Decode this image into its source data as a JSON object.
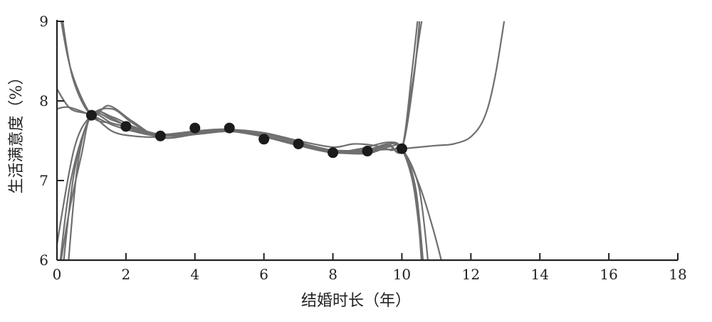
{
  "chart_data": {
    "type": "line",
    "xlabel": "结婚时长（年）",
    "ylabel": "生活满意度（%）",
    "xlim": [
      0,
      18
    ],
    "ylim": [
      6,
      9
    ],
    "x_ticks": [
      0,
      2,
      4,
      6,
      8,
      10,
      12,
      14,
      16,
      18
    ],
    "y_ticks": [
      6,
      7,
      8,
      9
    ],
    "grid": false,
    "legend": "none",
    "points": {
      "x": [
        1,
        2,
        3,
        4,
        5,
        6,
        7,
        8,
        9,
        10
      ],
      "y": [
        7.82,
        7.68,
        7.56,
        7.66,
        7.66,
        7.52,
        7.46,
        7.35,
        7.37,
        7.4
      ]
    },
    "series": [
      {
        "x": [
          0.05,
          0.4,
          1.0,
          1.6,
          2.2,
          3.0,
          4.0,
          5.0,
          6.0,
          7.0,
          8.0,
          9.0,
          9.6,
          10.0,
          10.4,
          10.6
        ],
        "y": [
          9.2,
          8.4,
          7.82,
          7.72,
          7.66,
          7.58,
          7.62,
          7.64,
          7.55,
          7.46,
          7.37,
          7.39,
          7.46,
          7.4,
          6.8,
          5.8
        ]
      },
      {
        "x": [
          0.1,
          0.45,
          1.0,
          1.5,
          2.2,
          3.0,
          4.0,
          5.0,
          6.0,
          7.0,
          8.0,
          8.8,
          9.6,
          10.0,
          10.35,
          10.65
        ],
        "y": [
          9.2,
          8.3,
          7.82,
          7.94,
          7.74,
          7.54,
          7.58,
          7.64,
          7.56,
          7.45,
          7.36,
          7.4,
          7.48,
          7.4,
          6.9,
          5.8
        ]
      },
      {
        "x": [
          0.0,
          0.4,
          1.0,
          1.6,
          2.2,
          3.0,
          4.0,
          5.0,
          6.0,
          7.0,
          8.0,
          8.6,
          9.2,
          9.7,
          10.0,
          10.4,
          10.65
        ],
        "y": [
          8.15,
          7.9,
          7.82,
          7.62,
          7.56,
          7.55,
          7.62,
          7.64,
          7.6,
          7.5,
          7.42,
          7.46,
          7.44,
          7.38,
          7.4,
          6.9,
          5.8
        ]
      },
      {
        "x": [
          0.0,
          0.5,
          1.0,
          1.6,
          2.2,
          3.0,
          4.0,
          5.0,
          6.0,
          7.0,
          8.0,
          9.0,
          9.6,
          10.0,
          10.5,
          10.8
        ],
        "y": [
          6.2,
          7.4,
          7.82,
          7.9,
          7.72,
          7.54,
          7.58,
          7.62,
          7.56,
          7.46,
          7.36,
          7.34,
          7.42,
          7.4,
          6.9,
          5.8
        ]
      },
      {
        "x": [
          0.05,
          0.35,
          0.7,
          1.0,
          1.6,
          2.2,
          3.0,
          4.0,
          5.0,
          6.0,
          7.0,
          8.0,
          9.0,
          9.6,
          10.0,
          10.5,
          10.9,
          11.2
        ],
        "y": [
          5.8,
          6.6,
          7.3,
          7.82,
          7.72,
          7.66,
          7.56,
          7.62,
          7.64,
          7.55,
          7.44,
          7.35,
          7.36,
          7.46,
          7.4,
          6.95,
          6.4,
          5.9
        ]
      },
      {
        "x": [
          0.05,
          0.4,
          1.0,
          1.6,
          2.2,
          3.0,
          4.0,
          5.0,
          6.0,
          7.0,
          8.0,
          9.0,
          9.6,
          10.0,
          10.3,
          10.5,
          10.65
        ],
        "y": [
          5.8,
          7.0,
          7.82,
          7.78,
          7.64,
          7.56,
          7.58,
          7.62,
          7.58,
          7.48,
          7.38,
          7.36,
          7.44,
          7.4,
          8.2,
          8.8,
          9.2
        ]
      },
      {
        "x": [
          0.15,
          0.5,
          1.0,
          1.6,
          2.2,
          3.0,
          4.0,
          5.0,
          6.0,
          7.0,
          8.0,
          9.0,
          9.6,
          10.0,
          10.35,
          10.55
        ],
        "y": [
          5.8,
          7.1,
          7.82,
          7.8,
          7.68,
          7.58,
          7.6,
          7.62,
          7.56,
          7.46,
          7.36,
          7.37,
          7.44,
          7.4,
          8.3,
          9.2
        ]
      },
      {
        "x": [
          0.3,
          0.6,
          1.0,
          1.6,
          2.2,
          3.0,
          4.0,
          5.0,
          6.0,
          7.0,
          8.0,
          9.0,
          9.6,
          10.0,
          10.3,
          10.5
        ],
        "y": [
          5.8,
          7.2,
          7.82,
          7.76,
          7.66,
          7.56,
          7.6,
          7.63,
          7.55,
          7.46,
          7.37,
          7.38,
          7.46,
          7.4,
          8.4,
          9.2
        ]
      },
      {
        "x": [
          0.0,
          0.35,
          1.0,
          1.6,
          2.2,
          3.0,
          4.0,
          5.0,
          6.0,
          7.0,
          8.0,
          9.0,
          10.0,
          10.5,
          11.0,
          11.5,
          12.0,
          12.4,
          12.7,
          13.0
        ],
        "y": [
          7.9,
          7.92,
          7.82,
          7.7,
          7.62,
          7.56,
          7.6,
          7.62,
          7.55,
          7.46,
          7.38,
          7.38,
          7.4,
          7.42,
          7.44,
          7.46,
          7.55,
          7.8,
          8.3,
          9.1
        ]
      }
    ]
  }
}
